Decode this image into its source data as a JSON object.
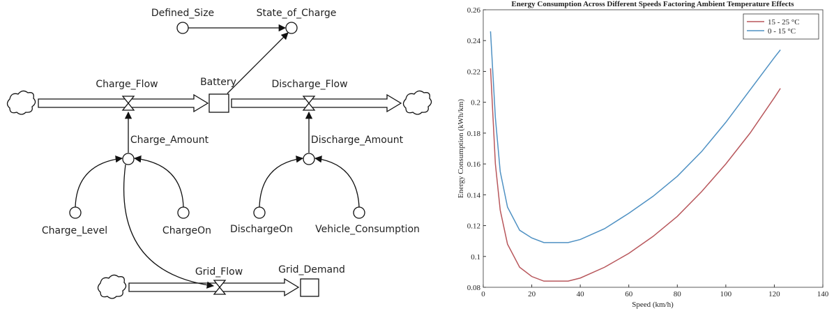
{
  "diagram": {
    "nodes": [
      "Defined_Size",
      "State_of_Charge",
      "Charge_Flow",
      "Battery",
      "Discharge_Flow",
      "Charge_Amount",
      "Discharge_Amount",
      "Charge_Level",
      "ChargeOn",
      "DischargeOn",
      "Vehicle_Consumption",
      "Grid_Flow",
      "Grid_Demand"
    ]
  },
  "chart_data": {
    "type": "line",
    "title": "Energy Consumption Across Different Speeds Factoring Ambient Temperature Effects",
    "x_label": "Speed (km/h)",
    "y_label": "Energy Consumption (kWh/km)",
    "x": [
      3,
      5,
      7,
      10,
      15,
      20,
      25,
      30,
      35,
      40,
      50,
      60,
      70,
      80,
      90,
      100,
      110,
      120,
      122.5
    ],
    "series": [
      {
        "name": "15 - 25 °C",
        "color": "#b8575c",
        "values": [
          0.222,
          0.16,
          0.13,
          0.108,
          0.093,
          0.087,
          0.084,
          0.084,
          0.084,
          0.086,
          0.093,
          0.102,
          0.113,
          0.126,
          0.142,
          0.16,
          0.18,
          0.203,
          0.209
        ]
      },
      {
        "name": "0 - 15 °C",
        "color": "#4f91c3",
        "values": [
          0.246,
          0.19,
          0.155,
          0.132,
          0.117,
          0.112,
          0.109,
          0.109,
          0.109,
          0.111,
          0.118,
          0.128,
          0.139,
          0.152,
          0.168,
          0.187,
          0.208,
          0.229,
          0.234
        ]
      }
    ],
    "xlim": [
      0,
      140
    ],
    "ylim": [
      0.08,
      0.26
    ],
    "xticks": [
      0,
      20,
      40,
      60,
      80,
      100,
      120,
      140
    ],
    "yticks": [
      0.08,
      0.1,
      0.12,
      0.14,
      0.16,
      0.18,
      0.2,
      0.22,
      0.24,
      0.26
    ],
    "legend": "upper right"
  }
}
